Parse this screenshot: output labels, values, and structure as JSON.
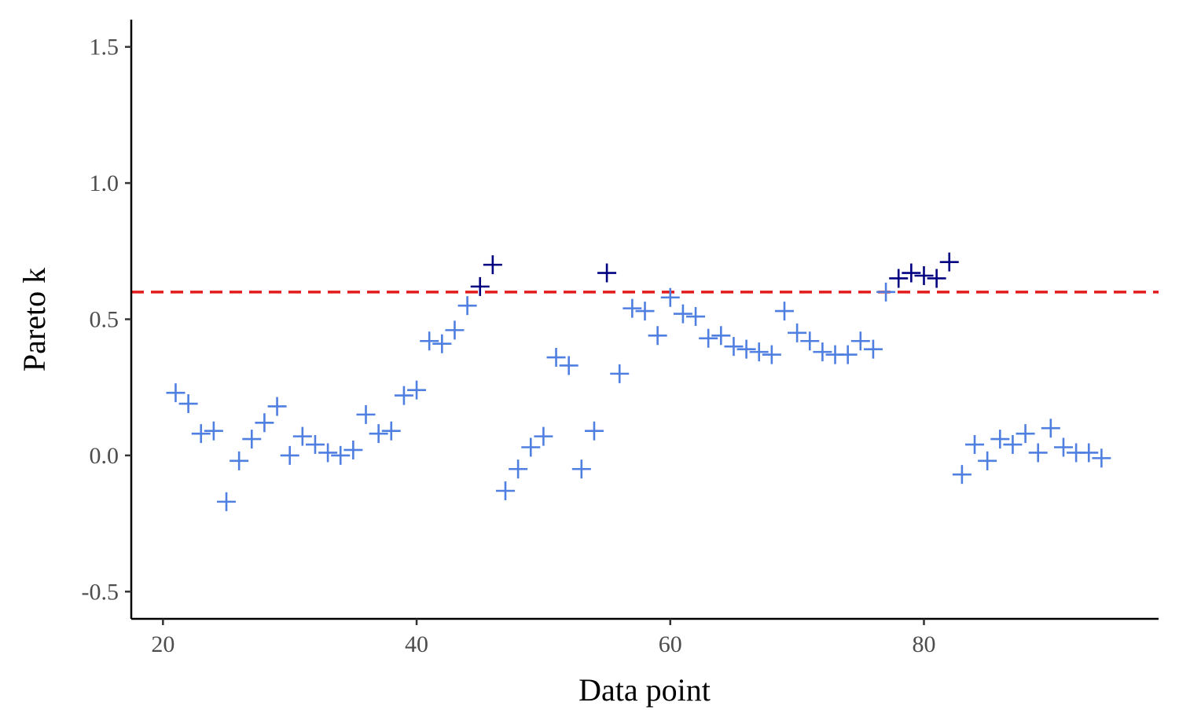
{
  "chart_data": {
    "type": "scatter",
    "xlabel": "Data point",
    "ylabel": "Pareto k",
    "xlim": [
      17.5,
      98.5
    ],
    "ylim": [
      -0.6,
      1.6
    ],
    "x_ticks": [
      {
        "value": 20,
        "label": "20"
      },
      {
        "value": 40,
        "label": "40"
      },
      {
        "value": 60,
        "label": "60"
      },
      {
        "value": 80,
        "label": "80"
      }
    ],
    "y_ticks": [
      {
        "value": -0.5,
        "label": "-0.5"
      },
      {
        "value": 0.0,
        "label": "0.0"
      },
      {
        "value": 0.5,
        "label": "0.5"
      },
      {
        "value": 1.0,
        "label": "1.0"
      },
      {
        "value": 1.5,
        "label": "1.5"
      }
    ],
    "grid": false,
    "legend": "none",
    "marker": "plus",
    "threshold": {
      "y": 0.6,
      "color": "#e31a1c",
      "style": "dashed"
    },
    "colors": {
      "below_threshold": "#4f7fe0",
      "above_threshold": "#000080"
    },
    "points": [
      {
        "x": 21,
        "y": 0.23
      },
      {
        "x": 22,
        "y": 0.19
      },
      {
        "x": 23,
        "y": 0.08
      },
      {
        "x": 24,
        "y": 0.09
      },
      {
        "x": 25,
        "y": -0.17
      },
      {
        "x": 26,
        "y": -0.02
      },
      {
        "x": 27,
        "y": 0.06
      },
      {
        "x": 28,
        "y": 0.12
      },
      {
        "x": 29,
        "y": 0.18
      },
      {
        "x": 30,
        "y": 0.0
      },
      {
        "x": 31,
        "y": 0.07
      },
      {
        "x": 32,
        "y": 0.04
      },
      {
        "x": 33,
        "y": 0.01
      },
      {
        "x": 34,
        "y": 0.0
      },
      {
        "x": 35,
        "y": 0.02
      },
      {
        "x": 36,
        "y": 0.15
      },
      {
        "x": 37,
        "y": 0.08
      },
      {
        "x": 38,
        "y": 0.09
      },
      {
        "x": 39,
        "y": 0.22
      },
      {
        "x": 40,
        "y": 0.24
      },
      {
        "x": 41,
        "y": 0.42
      },
      {
        "x": 42,
        "y": 0.41
      },
      {
        "x": 43,
        "y": 0.46
      },
      {
        "x": 44,
        "y": 0.55
      },
      {
        "x": 45,
        "y": 0.62
      },
      {
        "x": 46,
        "y": 0.7
      },
      {
        "x": 47,
        "y": -0.13
      },
      {
        "x": 48,
        "y": -0.05
      },
      {
        "x": 49,
        "y": 0.03
      },
      {
        "x": 50,
        "y": 0.07
      },
      {
        "x": 51,
        "y": 0.36
      },
      {
        "x": 52,
        "y": 0.33
      },
      {
        "x": 53,
        "y": -0.05
      },
      {
        "x": 54,
        "y": 0.09
      },
      {
        "x": 55,
        "y": 0.67
      },
      {
        "x": 56,
        "y": 0.3
      },
      {
        "x": 57,
        "y": 0.54
      },
      {
        "x": 58,
        "y": 0.53
      },
      {
        "x": 59,
        "y": 0.44
      },
      {
        "x": 60,
        "y": 0.58
      },
      {
        "x": 61,
        "y": 0.52
      },
      {
        "x": 62,
        "y": 0.51
      },
      {
        "x": 63,
        "y": 0.43
      },
      {
        "x": 64,
        "y": 0.44
      },
      {
        "x": 65,
        "y": 0.4
      },
      {
        "x": 66,
        "y": 0.39
      },
      {
        "x": 67,
        "y": 0.38
      },
      {
        "x": 68,
        "y": 0.37
      },
      {
        "x": 69,
        "y": 0.53
      },
      {
        "x": 70,
        "y": 0.45
      },
      {
        "x": 71,
        "y": 0.42
      },
      {
        "x": 72,
        "y": 0.38
      },
      {
        "x": 73,
        "y": 0.37
      },
      {
        "x": 74,
        "y": 0.37
      },
      {
        "x": 75,
        "y": 0.42
      },
      {
        "x": 76,
        "y": 0.39
      },
      {
        "x": 77,
        "y": 0.6
      },
      {
        "x": 78,
        "y": 0.65
      },
      {
        "x": 79,
        "y": 0.67
      },
      {
        "x": 80,
        "y": 0.66
      },
      {
        "x": 81,
        "y": 0.65
      },
      {
        "x": 82,
        "y": 0.71
      },
      {
        "x": 83,
        "y": -0.07
      },
      {
        "x": 84,
        "y": 0.04
      },
      {
        "x": 85,
        "y": -0.02
      },
      {
        "x": 86,
        "y": 0.06
      },
      {
        "x": 87,
        "y": 0.04
      },
      {
        "x": 88,
        "y": 0.08
      },
      {
        "x": 89,
        "y": 0.01
      },
      {
        "x": 90,
        "y": 0.1
      },
      {
        "x": 91,
        "y": 0.03
      },
      {
        "x": 92,
        "y": 0.01
      },
      {
        "x": 93,
        "y": 0.01
      },
      {
        "x": 94,
        "y": -0.01
      }
    ]
  }
}
